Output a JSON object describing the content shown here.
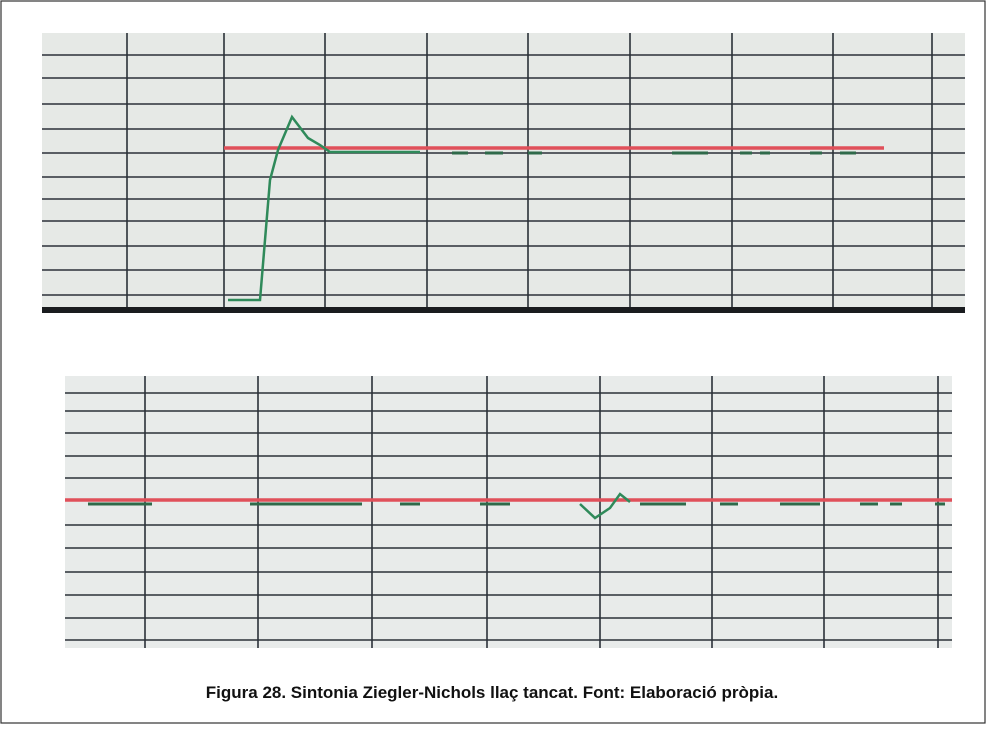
{
  "caption": "Figura 28. Sintonia Ziegler-Nichols llaç tancat. Font: Elaboració pròpia."
}
